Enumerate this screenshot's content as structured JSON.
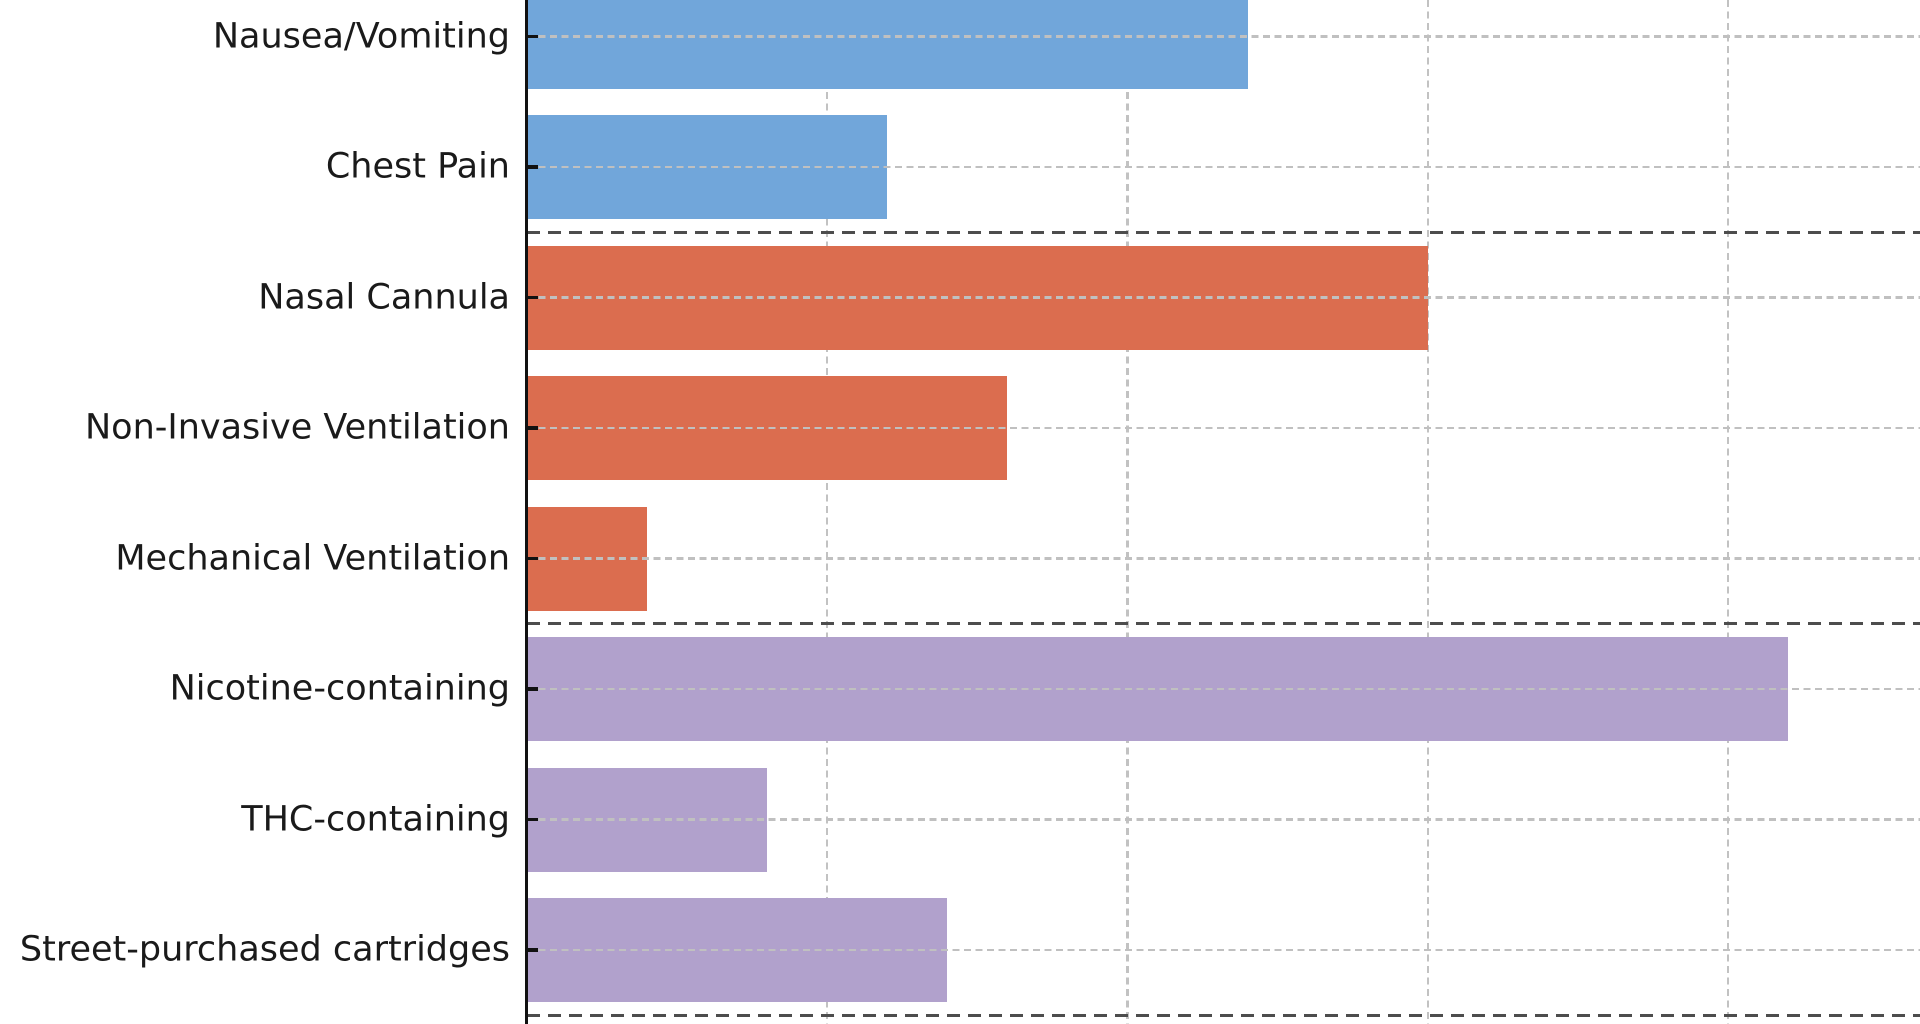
{
  "chart_data": {
    "type": "bar",
    "orientation": "horizontal",
    "title": "",
    "xlabel": "",
    "ylabel": "",
    "x_axis": {
      "tick_labels_visible": false,
      "gridline_interval": 20,
      "note": "x tick labels are cropped out of the visible area; vertical dashed gridlines every 20 units (estimated percent), visible range 0-92"
    },
    "grid": "dashed",
    "categories": [
      "Nausea/Vomiting",
      "Chest Pain",
      "Nasal Cannula",
      "Non-Invasive Ventilation",
      "Mechanical Ventilation",
      "Nicotine-containing",
      "THC-containing",
      "Street-purchased cartridges"
    ],
    "values": [
      48,
      24,
      60,
      32,
      8,
      84,
      16,
      28
    ],
    "rows": [
      {
        "label": "Nausea/Vomiting",
        "value": 48,
        "color": "#71A6DA"
      },
      {
        "label": "Chest Pain",
        "value": 24,
        "color": "#71A6DA"
      },
      {
        "label": "Nasal Cannula",
        "value": 60,
        "color": "#DB6D4F"
      },
      {
        "label": "Non-Invasive Ventilation",
        "value": 32,
        "color": "#DB6D4F"
      },
      {
        "label": "Mechanical Ventilation",
        "value": 8,
        "color": "#DB6D4F"
      },
      {
        "label": "Nicotine-containing",
        "value": 84,
        "color": "#B1A1CC"
      },
      {
        "label": "THC-containing",
        "value": 16,
        "color": "#B1A1CC"
      },
      {
        "label": "Street-purchased cartridges",
        "value": 28,
        "color": "#B1A1CC"
      }
    ],
    "color_groups": [
      {
        "color": "#71A6DA",
        "row_indexes": [
          0,
          1
        ]
      },
      {
        "color": "#DB6D4F",
        "row_indexes": [
          2,
          3,
          4
        ]
      },
      {
        "color": "#B1A1CC",
        "row_indexes": [
          5,
          6,
          7
        ]
      }
    ],
    "group_separators_after_rows": [
      1,
      4,
      7
    ],
    "styles": {
      "bar_blue": "#71A6DA",
      "bar_orange": "#DB6D4F",
      "bar_purple": "#B1A1CC",
      "axis_color": "#111111",
      "label_color": "#1A1A1A",
      "minor_gridline_color": "#C2C2C2",
      "separator_color": "#4D4D4D",
      "background": "#FFFFFF"
    }
  }
}
